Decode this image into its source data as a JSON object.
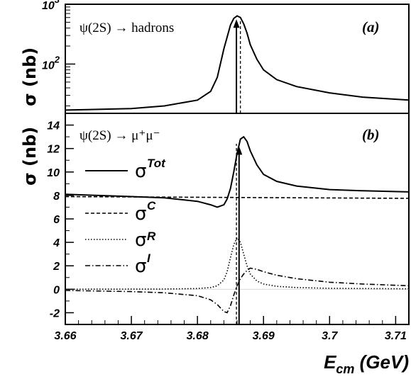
{
  "chart_data": [
    {
      "type": "line",
      "panel_label": "(a)",
      "annotation": "ψ(2S) → hadrons",
      "ylabel": "σ (nb)",
      "yscale": "log",
      "xlim": [
        3.66,
        3.712
      ],
      "ylim": [
        15,
        1000
      ],
      "yticks": [
        {
          "value": 100,
          "base": "10",
          "exp": "2"
        },
        {
          "value": 1000,
          "base": "10",
          "exp": "3"
        }
      ],
      "series": [
        {
          "style": "solid",
          "x": [
            3.66,
            3.67,
            3.675,
            3.68,
            3.682,
            3.683,
            3.684,
            3.685,
            3.6855,
            3.686,
            3.6865,
            3.687,
            3.6875,
            3.688,
            3.689,
            3.69,
            3.692,
            3.695,
            3.7,
            3.705,
            3.712
          ],
          "y": [
            17,
            18,
            20,
            25,
            35,
            60,
            180,
            450,
            580,
            640,
            600,
            470,
            330,
            210,
            120,
            80,
            55,
            42,
            33,
            28,
            25
          ]
        }
      ],
      "markers": [
        {
          "style": "solid-arrow",
          "x": 3.6859
        },
        {
          "style": "dashed",
          "x": 3.6865
        }
      ]
    },
    {
      "type": "line",
      "panel_label": "(b)",
      "annotation": "ψ(2S) → μ⁺μ⁻",
      "ylabel": "σ (nb)",
      "xlabel": "E_cm (GeV)",
      "xlabel_main": "E",
      "xlabel_sub": "cm",
      "xlabel_unit": " (GeV)",
      "xlim": [
        3.66,
        3.712
      ],
      "ylim": [
        -3,
        15
      ],
      "xticks": [
        "3.66",
        "3.67",
        "3.68",
        "3.69",
        "3.7",
        "3.71"
      ],
      "xtick_values": [
        3.66,
        3.67,
        3.68,
        3.69,
        3.7,
        3.71
      ],
      "yticks": [
        "-2",
        "0",
        "2",
        "4",
        "6",
        "8",
        "10",
        "12",
        "14"
      ],
      "ytick_values": [
        -2,
        0,
        2,
        4,
        6,
        8,
        10,
        12,
        14
      ],
      "legend": [
        {
          "style": "solid",
          "sup": "Tot",
          "sub": ""
        },
        {
          "style": "dashed",
          "sup": "C",
          "sub": ""
        },
        {
          "style": "dotted",
          "sup": "",
          "sub": "R"
        },
        {
          "style": "dashdot",
          "sup": "I",
          "sub": ""
        }
      ],
      "series": [
        {
          "style": "solid",
          "x": [
            3.66,
            3.665,
            3.67,
            3.675,
            3.68,
            3.682,
            3.683,
            3.684,
            3.6845,
            3.685,
            3.6855,
            3.686,
            3.6865,
            3.687,
            3.6875,
            3.688,
            3.689,
            3.69,
            3.692,
            3.695,
            3.7,
            3.705,
            3.712
          ],
          "y": [
            8.1,
            8.0,
            7.9,
            7.8,
            7.5,
            7.2,
            7.0,
            7.2,
            7.7,
            8.6,
            10.0,
            11.6,
            12.8,
            13.0,
            12.6,
            11.8,
            10.6,
            9.8,
            9.2,
            8.8,
            8.5,
            8.4,
            8.3
          ]
        },
        {
          "style": "dashed",
          "x": [
            3.66,
            3.712
          ],
          "y": [
            7.9,
            7.75
          ]
        },
        {
          "style": "dotted",
          "x": [
            3.66,
            3.675,
            3.68,
            3.682,
            3.683,
            3.684,
            3.6845,
            3.685,
            3.6855,
            3.686,
            3.6865,
            3.687,
            3.6875,
            3.688,
            3.689,
            3.69,
            3.692,
            3.695,
            3.7,
            3.712
          ],
          "y": [
            0.0,
            0.02,
            0.06,
            0.15,
            0.3,
            0.8,
            1.5,
            2.7,
            3.8,
            4.4,
            4.0,
            3.0,
            2.0,
            1.3,
            0.7,
            0.45,
            0.25,
            0.15,
            0.08,
            0.04
          ]
        },
        {
          "style": "dashdot",
          "x": [
            3.66,
            3.67,
            3.675,
            3.68,
            3.682,
            3.683,
            3.684,
            3.6845,
            3.685,
            3.6855,
            3.686,
            3.6865,
            3.687,
            3.6875,
            3.688,
            3.689,
            3.69,
            3.692,
            3.695,
            3.7,
            3.705,
            3.712
          ],
          "y": [
            -0.1,
            -0.2,
            -0.3,
            -0.55,
            -0.9,
            -1.3,
            -1.9,
            -2.0,
            -1.4,
            -0.5,
            0.3,
            0.9,
            1.3,
            1.6,
            1.8,
            1.7,
            1.5,
            1.2,
            0.9,
            0.6,
            0.45,
            0.3
          ]
        }
      ],
      "markers": [
        {
          "style": "solid-arrow",
          "x": 3.6863
        },
        {
          "style": "dashed",
          "x": 3.6859
        }
      ]
    }
  ]
}
